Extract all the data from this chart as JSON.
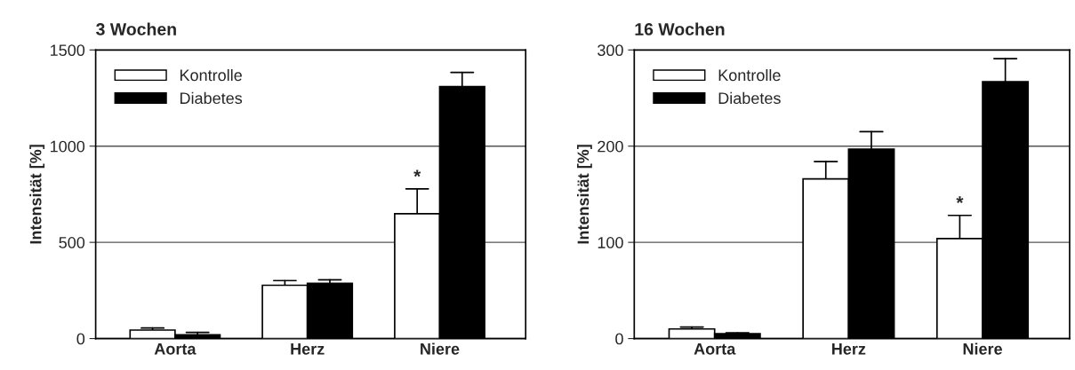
{
  "chart_data": [
    {
      "type": "bar",
      "title": "3 Wochen",
      "ylabel": "Intensität [%]",
      "categories": [
        "Aorta",
        "Herz",
        "Niere"
      ],
      "series": [
        {
          "name": "Kontrolle",
          "color": "#ffffff",
          "values": [
            44,
            277,
            649
          ],
          "errors": [
            [
              44,
              55
            ],
            [
              277,
              301
            ],
            [
              649,
              778
            ]
          ]
        },
        {
          "name": "Diabetes",
          "color": "#000000",
          "values": [
            20,
            287,
            1310
          ],
          "errors": [
            [
              20,
              32
            ],
            [
              287,
              305
            ],
            [
              1310,
              1383
            ]
          ]
        }
      ],
      "ylim": [
        0,
        1500
      ],
      "yticks": [
        0,
        500,
        1000,
        1500
      ],
      "grid": "y",
      "legend": "top left",
      "annotations": [
        {
          "text": "*",
          "x": "Niere",
          "y": 778
        }
      ]
    },
    {
      "type": "bar",
      "title": "16 Wochen",
      "ylabel": "Intensität [%]",
      "categories": [
        "Aorta",
        "Herz",
        "Niere"
      ],
      "series": [
        {
          "name": "Kontrolle",
          "color": "#ffffff",
          "values": [
            10,
            166,
            104
          ],
          "errors": [
            [
              10,
              12
            ],
            [
              166,
              184
            ],
            [
              104,
              128
            ]
          ]
        },
        {
          "name": "Diabetes",
          "color": "#000000",
          "values": [
            5,
            197,
            267
          ],
          "errors": [
            [
              5,
              6
            ],
            [
              197,
              215
            ],
            [
              267,
              291
            ]
          ]
        }
      ],
      "ylim": [
        0,
        300
      ],
      "yticks": [
        0,
        100,
        200,
        300
      ],
      "grid": "y",
      "legend": "top left",
      "annotations": [
        {
          "text": "*",
          "x": "Niere",
          "y": 128
        }
      ]
    }
  ]
}
